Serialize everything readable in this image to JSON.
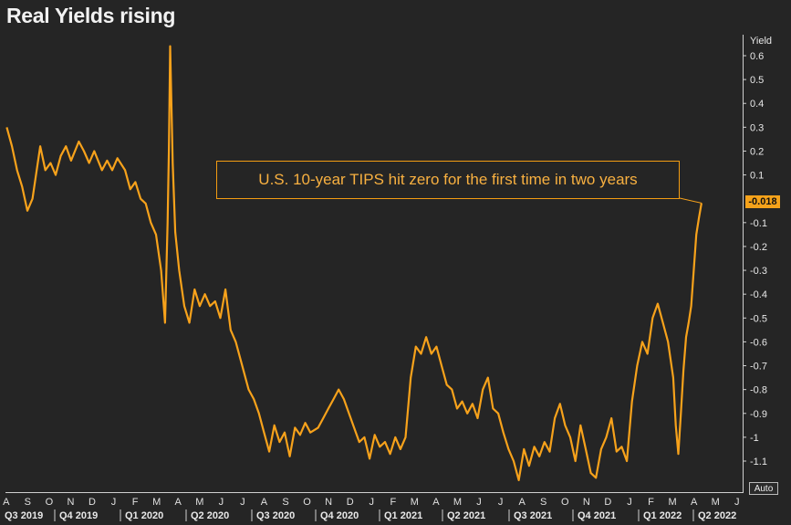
{
  "title": "Real Yields rising",
  "annotation": "U.S. 10-year TIPS hit zero for the first time in two years",
  "auto_label": "Auto",
  "last_value_label": "-0.018",
  "colors": {
    "line": "#F7A21B",
    "background": "#252525",
    "axis": "#CFCFCF",
    "text": "#E8E8E8"
  },
  "chart_data": {
    "type": "line",
    "title": "Real Yields rising",
    "ylabel": "Yield",
    "ylim": [
      -1.25,
      0.7
    ],
    "yticks": [
      0.6,
      0.5,
      0.4,
      0.3,
      0.2,
      0.1,
      -0.1,
      -0.2,
      -0.3,
      -0.4,
      -0.5,
      -0.6,
      -0.7,
      -0.8,
      -0.9,
      -1,
      -1.1
    ],
    "last_value": -0.018,
    "months": [
      "A",
      "S",
      "O",
      "N",
      "D",
      "J",
      "F",
      "M",
      "A",
      "M",
      "J",
      "J",
      "A",
      "S",
      "O",
      "N",
      "D",
      "J",
      "F",
      "M",
      "A",
      "M",
      "J",
      "J",
      "A",
      "S",
      "O",
      "N",
      "D",
      "J",
      "F",
      "M",
      "A",
      "M",
      "J"
    ],
    "quarters": [
      "Q3 2019",
      "Q4 2019",
      "Q1 2020",
      "Q2 2020",
      "Q3 2020",
      "Q4 2020",
      "Q1 2021",
      "Q2 2021",
      "Q3 2021",
      "Q4 2021",
      "Q1 2022",
      "Q2 2022"
    ],
    "series": [
      {
        "values": [
          [
            2019.58,
            0.3
          ],
          [
            2019.6,
            0.22
          ],
          [
            2019.62,
            0.12
          ],
          [
            2019.64,
            0.05
          ],
          [
            2019.66,
            -0.05
          ],
          [
            2019.68,
            0.0
          ],
          [
            2019.71,
            0.22
          ],
          [
            2019.73,
            0.12
          ],
          [
            2019.75,
            0.15
          ],
          [
            2019.77,
            0.1
          ],
          [
            2019.79,
            0.18
          ],
          [
            2019.81,
            0.22
          ],
          [
            2019.83,
            0.16
          ],
          [
            2019.86,
            0.24
          ],
          [
            2019.88,
            0.2
          ],
          [
            2019.9,
            0.15
          ],
          [
            2019.92,
            0.2
          ],
          [
            2019.95,
            0.12
          ],
          [
            2019.97,
            0.16
          ],
          [
            2019.99,
            0.12
          ],
          [
            2020.01,
            0.17
          ],
          [
            2020.04,
            0.12
          ],
          [
            2020.06,
            0.04
          ],
          [
            2020.08,
            0.07
          ],
          [
            2020.1,
            0.0
          ],
          [
            2020.12,
            -0.02
          ],
          [
            2020.14,
            -0.1
          ],
          [
            2020.16,
            -0.15
          ],
          [
            2020.18,
            -0.3
          ],
          [
            2020.195,
            -0.52
          ],
          [
            2020.205,
            -0.1
          ],
          [
            2020.21,
            0.2
          ],
          [
            2020.215,
            0.64
          ],
          [
            2020.225,
            0.15
          ],
          [
            2020.235,
            -0.14
          ],
          [
            2020.25,
            -0.3
          ],
          [
            2020.27,
            -0.45
          ],
          [
            2020.29,
            -0.52
          ],
          [
            2020.31,
            -0.38
          ],
          [
            2020.33,
            -0.45
          ],
          [
            2020.35,
            -0.4
          ],
          [
            2020.37,
            -0.45
          ],
          [
            2020.39,
            -0.43
          ],
          [
            2020.41,
            -0.5
          ],
          [
            2020.43,
            -0.38
          ],
          [
            2020.45,
            -0.55
          ],
          [
            2020.47,
            -0.6
          ],
          [
            2020.5,
            -0.72
          ],
          [
            2020.52,
            -0.8
          ],
          [
            2020.54,
            -0.84
          ],
          [
            2020.56,
            -0.9
          ],
          [
            2020.58,
            -0.98
          ],
          [
            2020.6,
            -1.06
          ],
          [
            2020.62,
            -0.95
          ],
          [
            2020.64,
            -1.02
          ],
          [
            2020.66,
            -0.98
          ],
          [
            2020.68,
            -1.08
          ],
          [
            2020.7,
            -0.96
          ],
          [
            2020.72,
            -0.99
          ],
          [
            2020.74,
            -0.94
          ],
          [
            2020.76,
            -0.98
          ],
          [
            2020.79,
            -0.96
          ],
          [
            2020.81,
            -0.92
          ],
          [
            2020.83,
            -0.88
          ],
          [
            2020.85,
            -0.84
          ],
          [
            2020.87,
            -0.8
          ],
          [
            2020.89,
            -0.84
          ],
          [
            2020.91,
            -0.9
          ],
          [
            2020.93,
            -0.96
          ],
          [
            2020.95,
            -1.02
          ],
          [
            2020.97,
            -1.0
          ],
          [
            2020.99,
            -1.09
          ],
          [
            2021.01,
            -0.99
          ],
          [
            2021.03,
            -1.04
          ],
          [
            2021.05,
            -1.02
          ],
          [
            2021.07,
            -1.07
          ],
          [
            2021.09,
            -1.0
          ],
          [
            2021.11,
            -1.05
          ],
          [
            2021.13,
            -1.0
          ],
          [
            2021.15,
            -0.75
          ],
          [
            2021.17,
            -0.62
          ],
          [
            2021.19,
            -0.65
          ],
          [
            2021.21,
            -0.58
          ],
          [
            2021.23,
            -0.65
          ],
          [
            2021.25,
            -0.62
          ],
          [
            2021.27,
            -0.7
          ],
          [
            2021.29,
            -0.78
          ],
          [
            2021.31,
            -0.8
          ],
          [
            2021.33,
            -0.88
          ],
          [
            2021.35,
            -0.85
          ],
          [
            2021.37,
            -0.9
          ],
          [
            2021.39,
            -0.86
          ],
          [
            2021.41,
            -0.92
          ],
          [
            2021.43,
            -0.8
          ],
          [
            2021.45,
            -0.75
          ],
          [
            2021.47,
            -0.88
          ],
          [
            2021.49,
            -0.9
          ],
          [
            2021.51,
            -0.98
          ],
          [
            2021.53,
            -1.05
          ],
          [
            2021.55,
            -1.1
          ],
          [
            2021.57,
            -1.18
          ],
          [
            2021.59,
            -1.05
          ],
          [
            2021.61,
            -1.12
          ],
          [
            2021.63,
            -1.04
          ],
          [
            2021.65,
            -1.08
          ],
          [
            2021.67,
            -1.02
          ],
          [
            2021.69,
            -1.06
          ],
          [
            2021.71,
            -0.92
          ],
          [
            2021.73,
            -0.86
          ],
          [
            2021.75,
            -0.95
          ],
          [
            2021.77,
            -1.0
          ],
          [
            2021.79,
            -1.1
          ],
          [
            2021.81,
            -0.95
          ],
          [
            2021.83,
            -1.05
          ],
          [
            2021.85,
            -1.15
          ],
          [
            2021.87,
            -1.17
          ],
          [
            2021.89,
            -1.05
          ],
          [
            2021.91,
            -1.0
          ],
          [
            2021.93,
            -0.92
          ],
          [
            2021.95,
            -1.06
          ],
          [
            2021.97,
            -1.04
          ],
          [
            2021.99,
            -1.1
          ],
          [
            2022.01,
            -0.85
          ],
          [
            2022.03,
            -0.7
          ],
          [
            2022.05,
            -0.6
          ],
          [
            2022.07,
            -0.65
          ],
          [
            2022.09,
            -0.5
          ],
          [
            2022.11,
            -0.44
          ],
          [
            2022.13,
            -0.52
          ],
          [
            2022.15,
            -0.6
          ],
          [
            2022.17,
            -0.75
          ],
          [
            2022.18,
            -0.95
          ],
          [
            2022.19,
            -1.07
          ],
          [
            2022.2,
            -0.9
          ],
          [
            2022.21,
            -0.72
          ],
          [
            2022.22,
            -0.58
          ],
          [
            2022.23,
            -0.52
          ],
          [
            2022.24,
            -0.45
          ],
          [
            2022.25,
            -0.3
          ],
          [
            2022.26,
            -0.15
          ],
          [
            2022.27,
            -0.08
          ],
          [
            2022.28,
            -0.018
          ]
        ]
      }
    ]
  }
}
